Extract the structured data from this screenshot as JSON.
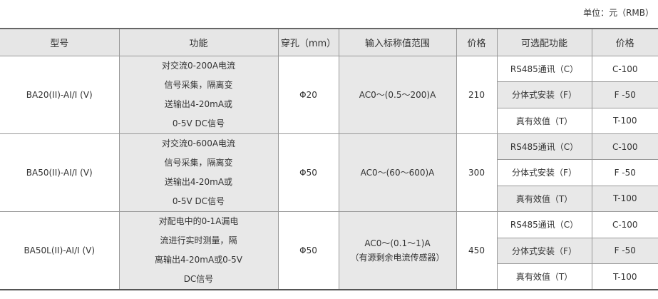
{
  "unit_label": "单位：元（RMB）",
  "headers": [
    "型号",
    "功能",
    "穿孔（mm）",
    "输入标称值范围",
    "价格",
    "可选配功能",
    "价格"
  ],
  "rows": [
    {
      "model": "BA20(II)-AI/I (V)",
      "function_lines": [
        "对交流0-200A电流",
        "信号采集，隔离变",
        "送输出4-20mA或",
        "0-5V DC信号"
      ],
      "hole": "Φ20",
      "input_lines": [
        "AC0～(0.5～200)A"
      ],
      "price": "210",
      "options": [
        {
          "name": "RS485通讯（C）",
          "price": "C-100"
        },
        {
          "name": "分体式安装（F）",
          "price": "F -50"
        },
        {
          "name": "真有效值（T）",
          "price": "T-100"
        }
      ]
    },
    {
      "model": "BA50(II)-AI/I (V)",
      "function_lines": [
        "对交流0-600A电流",
        "信号采集，隔离变",
        "送输出4-20mA或",
        "0-5V DC信号"
      ],
      "hole": "Φ50",
      "input_lines": [
        "AC0～(60～600)A"
      ],
      "price": "300",
      "options": [
        {
          "name": "RS485通讯（C）",
          "price": "C-100"
        },
        {
          "name": "分体式安装（F）",
          "price": "F -50"
        },
        {
          "name": "真有效值（T）",
          "price": "T-100"
        }
      ]
    },
    {
      "model": "BA50L(II)-AI/I (V)",
      "function_lines": [
        "对配电中的0-1A漏电",
        "流进行实时测量，隔",
        "离输出4-20mA或0-5V",
        "DC信号"
      ],
      "hole": "Φ50",
      "input_lines": [
        "AC0～(0.1～1)A",
        "（有源剩余电流传感器）"
      ],
      "price": "450",
      "options": [
        {
          "name": "RS485通讯（C）",
          "price": "C-100"
        },
        {
          "name": "分体式安装（F）",
          "price": "F -50"
        },
        {
          "name": "真有效值（T）",
          "price": "T-100"
        }
      ]
    }
  ]
}
